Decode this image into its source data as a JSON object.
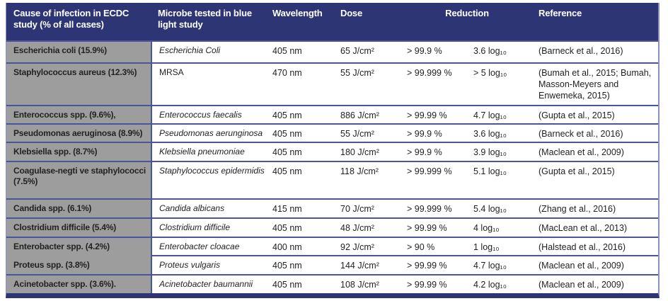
{
  "colors": {
    "header_bg": "#2e3574",
    "first_column_bg": "#9d9d9d",
    "row_border": "#4a549a",
    "bottom_bar": "#2e3574",
    "header_text": "#ffffff",
    "body_text": "#1f1f1f"
  },
  "chart_data": {
    "type": "table",
    "columns": [
      "Cause of infection in ECDC study (% of all cases)",
      "Microbe tested in blue light study",
      "Wavelength",
      "Dose",
      "Reduction",
      "Reference"
    ],
    "rows": [
      {
        "cause": "Escherichia coli (15.9%)",
        "microbe": "Escherichia Coli",
        "microbe_italic": true,
        "wavelength": "405 nm",
        "dose": "65 J/cm²",
        "reduction_percent": "> 99.9 %",
        "reduction_log": "3.6 log₁₀",
        "reference": "(Barneck et al., 2016)"
      },
      {
        "cause": "Staphylococcus aureus (12.3%)",
        "microbe": "MRSA",
        "microbe_italic": false,
        "wavelength": "470 nm",
        "dose": "55 J/cm²",
        "reduction_percent": "> 99.999 %",
        "reduction_log": "> 5 log₁₀",
        "reference": "(Bumah et al., 2015; Bumah, Masson-Meyers and Enwemeka, 2015)"
      },
      {
        "cause": "Enterococcus spp. (9.6%),",
        "microbe": "Enterococcus faecalis",
        "microbe_italic": true,
        "wavelength": "405 nm",
        "dose": "886 J/cm²",
        "reduction_percent": "> 99.99 %",
        "reduction_log": "4.7 log₁₀",
        "reference": "(Gupta et al., 2015)"
      },
      {
        "cause": "Pseudomonas aeruginosa (8.9%)",
        "microbe": "Pseudomonas aerunginosa",
        "microbe_italic": true,
        "wavelength": "405 nm",
        "dose": "55 J/cm²",
        "reduction_percent": "> 99.9 %",
        "reduction_log": "3.6 log₁₀",
        "reference": "(Barneck et al., 2016)"
      },
      {
        "cause": "Klebsiella spp. (8.7%)",
        "microbe": "Klebsiella pneumoniae",
        "microbe_italic": true,
        "wavelength": "405 nm",
        "dose": "180 J/cm²",
        "reduction_percent": "> 99.9 %",
        "reduction_log": "3.9 log₁₀",
        "reference": "(Maclean et al., 2009)"
      },
      {
        "cause": "Coagulase-negti ve staphylococci\n(7.5%)",
        "microbe": "Staphylococcus epidermidis",
        "microbe_italic": true,
        "wavelength": "405 nm",
        "dose": "118 J/cm²",
        "reduction_percent": "> 99.999 %",
        "reduction_log": "5.1 log₁₀",
        "reference": "(Gupta et al., 2015)"
      },
      {
        "cause": "Candida spp. (6.1%)",
        "microbe": "Candida albicans",
        "microbe_italic": true,
        "wavelength": "415 nm",
        "dose": "70 J/cm²",
        "reduction_percent": "> 99.999 %",
        "reduction_log": "5.4 log₁₀",
        "reference": "(Zhang et al., 2016)"
      },
      {
        "cause": "Clostridium difficile (5.4%)",
        "microbe": "Clostridium difficile",
        "microbe_italic": true,
        "wavelength": "405 nm",
        "dose": "48 J/cm²",
        "reduction_percent": "> 99.99 %",
        "reduction_log": "4 log₁₀",
        "reference": "(MacLean et al., 2013)"
      },
      {
        "cause": "Enterobacter spp. (4.2%)",
        "microbe": "Enterobacter cloacae",
        "microbe_italic": true,
        "wavelength": "400 nm",
        "dose": "92 J/cm²",
        "reduction_percent": "> 90 %",
        "reduction_log": "1 log₁₀",
        "reference": "(Halstead et al., 2016)"
      },
      {
        "cause": "Proteus spp. (3.8%)",
        "microbe": "Proteus vulgaris",
        "microbe_italic": true,
        "wavelength": "405 nm",
        "dose": "144 J/cm²",
        "reduction_percent": "> 99.99 %",
        "reduction_log": "4.7 log₁₀",
        "reference": "(Maclean et al., 2009)"
      },
      {
        "cause": "Acinetobacter spp. (3.6%).",
        "microbe": "Acinetobacter baumannii",
        "microbe_italic": true,
        "wavelength": "405 nm",
        "dose": "108 J/cm²",
        "reduction_percent": "> 99.99 %",
        "reduction_log": "4.2 log₁₀",
        "reference": "(Maclean et al., 2009)"
      }
    ]
  }
}
